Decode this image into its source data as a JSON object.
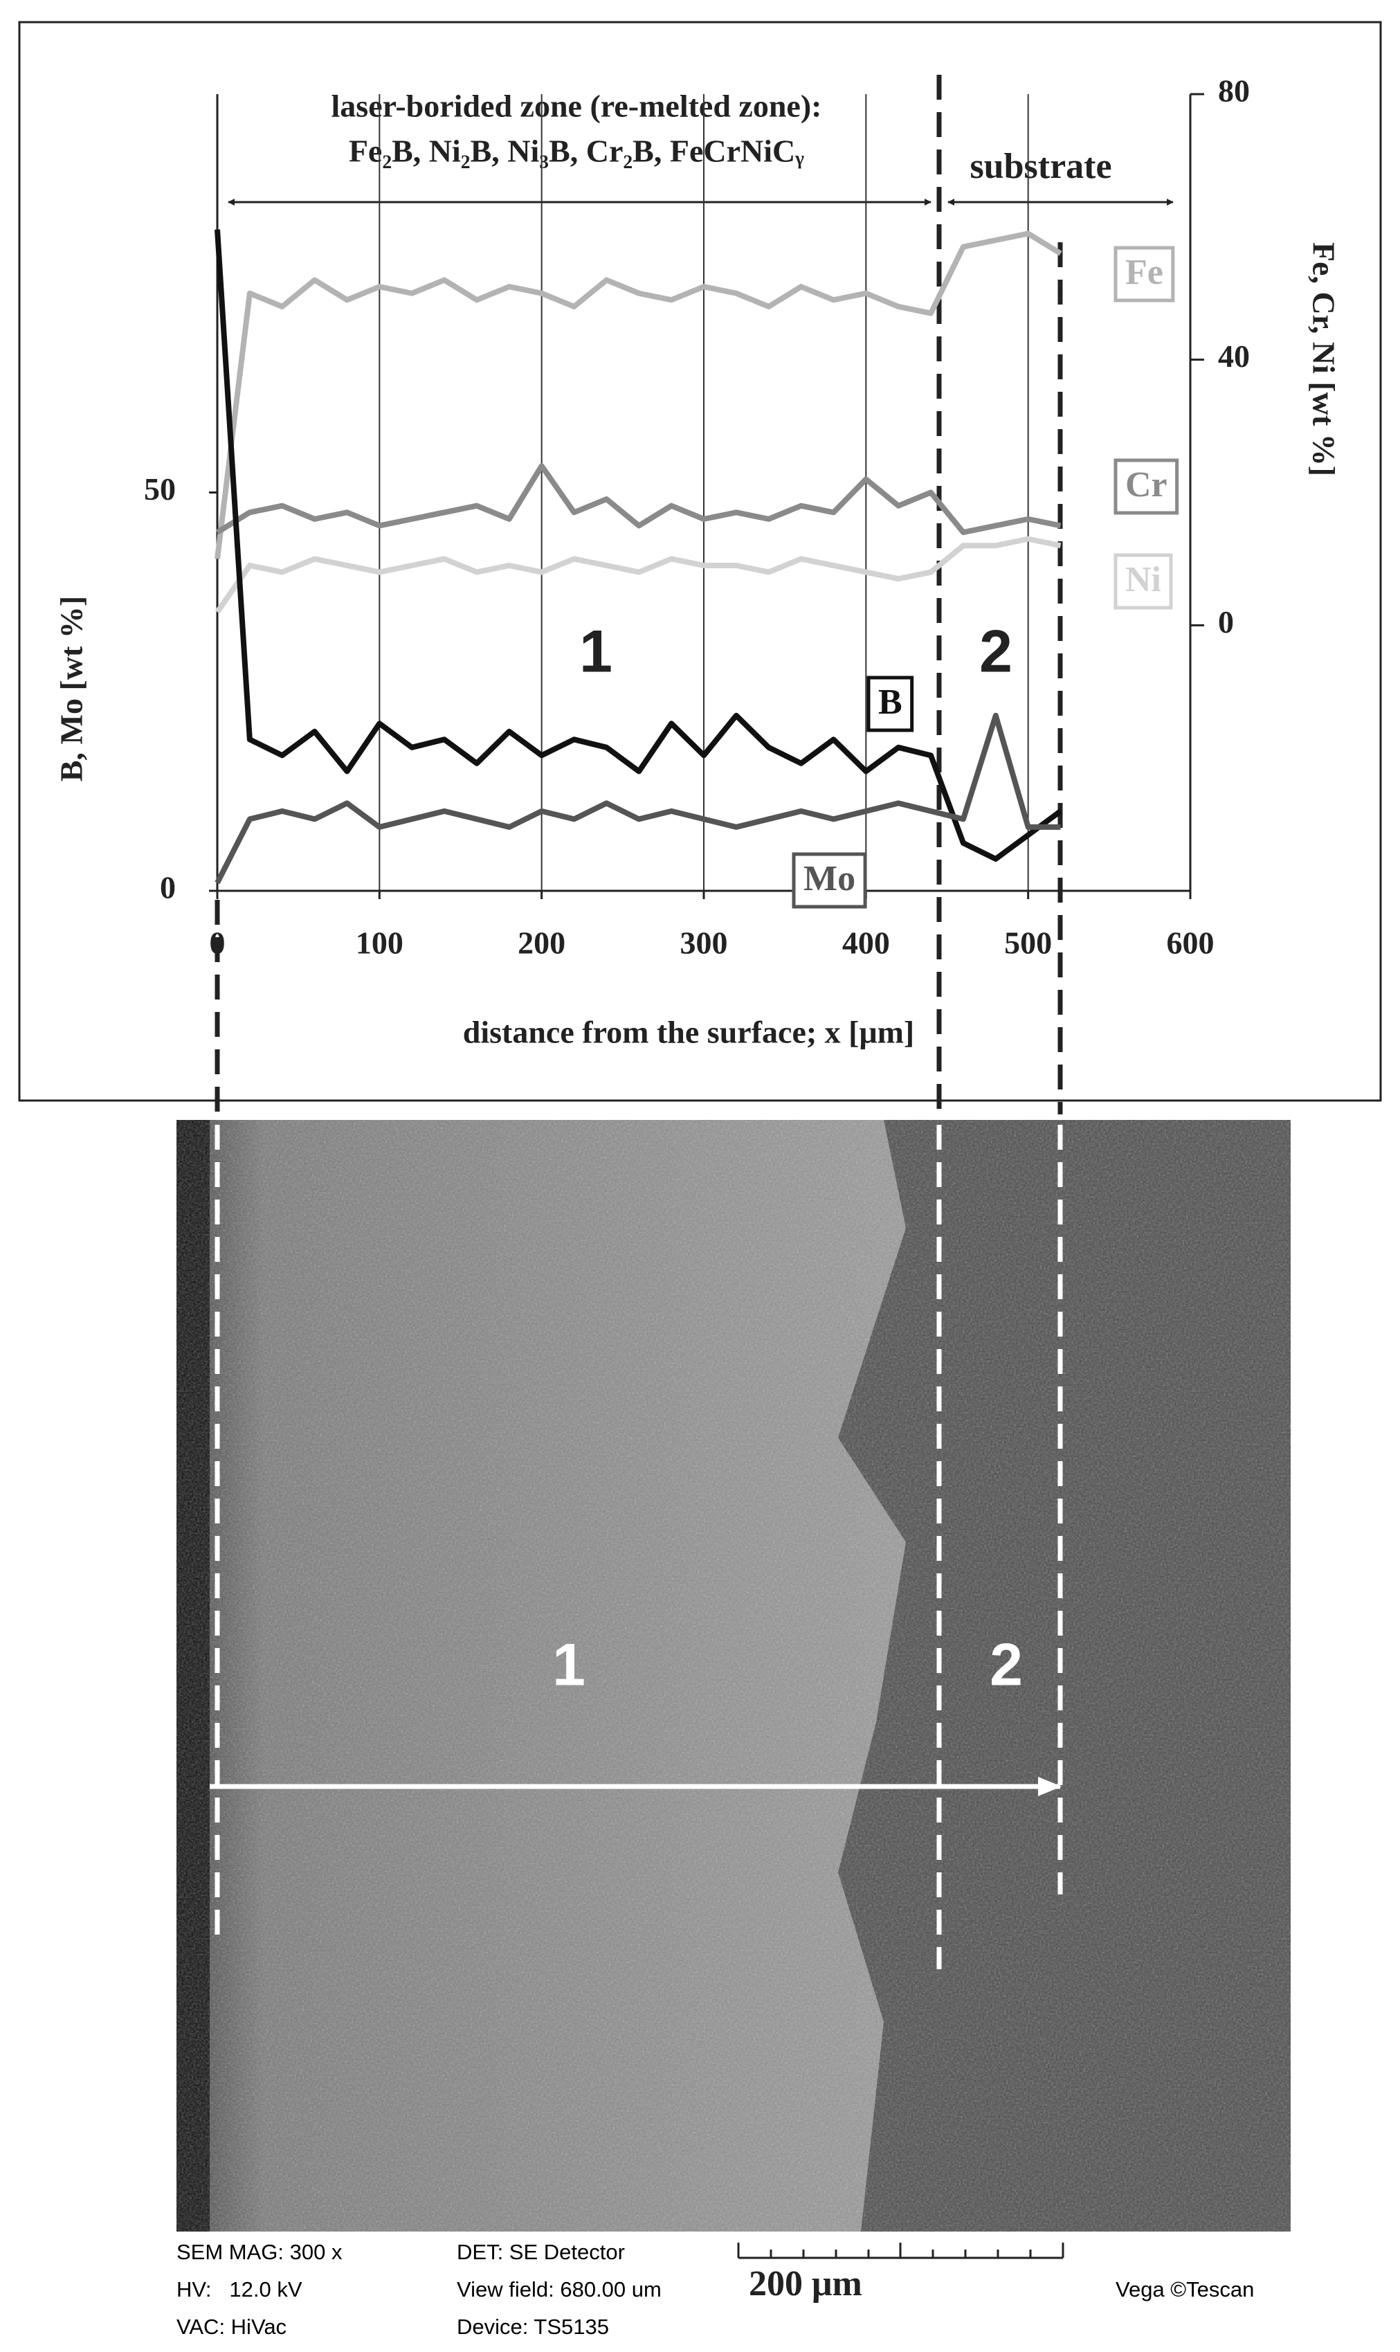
{
  "chart_data": {
    "type": "line",
    "annotations": [
      "laser-borided zone (re-melted zone):",
      "Fe₂B, Ni₂B, Ni₃B, Cr₂B, FeCrNiCᵧ",
      "substrate",
      "1",
      "2"
    ],
    "xlabel": "distance from the surface; x [μm]",
    "ylabel": "B, Mo [wt %]",
    "y2label": "Fe, Cr, Ni [wt %]",
    "x": [
      0,
      20,
      40,
      60,
      80,
      100,
      120,
      140,
      160,
      180,
      200,
      220,
      240,
      260,
      280,
      300,
      320,
      340,
      360,
      380,
      400,
      420,
      440,
      460,
      480,
      500,
      520
    ],
    "series": [
      {
        "name": "Fe",
        "color": "#b3b3b3",
        "axis": "y2",
        "values": [
          10,
          50,
          48,
          52,
          49,
          51,
          50,
          52,
          49,
          51,
          50,
          48,
          52,
          50,
          49,
          51,
          50,
          48,
          51,
          49,
          50,
          48,
          47,
          57,
          58,
          59,
          56
        ]
      },
      {
        "name": "Cr",
        "color": "#8a8a8a",
        "axis": "y2",
        "values": [
          14,
          17,
          18,
          16,
          17,
          15,
          16,
          17,
          18,
          16,
          24,
          17,
          19,
          15,
          18,
          16,
          17,
          16,
          18,
          17,
          22,
          18,
          20,
          14,
          15,
          16,
          15
        ]
      },
      {
        "name": "Ni",
        "color": "#d2d2d2",
        "axis": "y2",
        "values": [
          2,
          9,
          8,
          10,
          9,
          8,
          9,
          10,
          8,
          9,
          8,
          10,
          9,
          8,
          10,
          9,
          9,
          8,
          10,
          9,
          8,
          7,
          8,
          12,
          12,
          13,
          12
        ]
      },
      {
        "name": "B",
        "color": "#111111",
        "values": [
          83,
          19,
          17,
          20,
          15,
          21,
          18,
          19,
          16,
          20,
          17,
          19,
          18,
          15,
          21,
          17,
          22,
          18,
          16,
          19,
          15,
          18,
          17,
          6,
          4,
          7,
          10
        ]
      },
      {
        "name": "Mo",
        "color": "#555555",
        "values": [
          1,
          9,
          10,
          9,
          11,
          8,
          9,
          10,
          9,
          8,
          10,
          9,
          11,
          9,
          10,
          9,
          8,
          9,
          10,
          9,
          10,
          11,
          10,
          9,
          22,
          8,
          8
        ]
      }
    ],
    "xlim": [
      0,
      600
    ],
    "xticks": [
      0,
      100,
      200,
      300,
      400,
      500,
      600
    ],
    "ylim": [
      0,
      100
    ],
    "yticks": [
      0,
      50
    ],
    "y2lim": [
      -40,
      80
    ],
    "y2ticks": [
      0,
      40,
      80
    ],
    "grid": "x"
  },
  "sem_image": {
    "labels": [
      "1",
      "2"
    ],
    "info": [
      "SEM MAG: 300 x",
      "HV:   12.0 kV",
      "VAC: HiVac",
      "DET: SE Detector",
      "View field: 680.00 um",
      "Device: TS5135"
    ],
    "scale_bar": "200 μm",
    "brand": "Vega ©Tescan"
  }
}
